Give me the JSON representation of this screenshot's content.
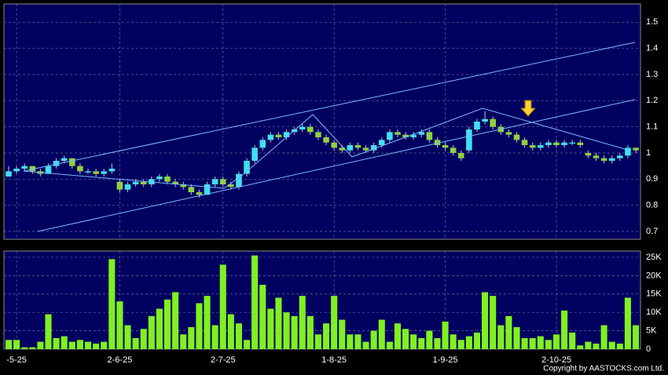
{
  "chart_data": {
    "type": "candlestick",
    "x": [
      null,
      "-5-25",
      null,
      null,
      null,
      null,
      null,
      null,
      null,
      null,
      null,
      null,
      null,
      null,
      "2-6-25",
      null,
      null,
      null,
      null,
      null,
      null,
      null,
      null,
      null,
      null,
      null,
      null,
      "2-7-25",
      null,
      null,
      null,
      null,
      null,
      null,
      null,
      null,
      null,
      null,
      null,
      null,
      null,
      "1-8-25",
      null,
      null,
      null,
      null,
      null,
      null,
      null,
      null,
      null,
      null,
      null,
      null,
      null,
      "1-9-25",
      null,
      null,
      null,
      null,
      null,
      null,
      null,
      null,
      null,
      null,
      null,
      null,
      null,
      "2-10-25",
      null,
      null,
      null,
      null,
      null,
      null,
      null,
      null,
      null,
      null
    ],
    "open": [
      0.91,
      0.93,
      0.94,
      0.95,
      0.93,
      0.92,
      0.95,
      0.97,
      0.98,
      0.95,
      0.93,
      0.93,
      0.92,
      0.93,
      0.89,
      0.86,
      0.88,
      0.89,
      0.88,
      0.9,
      0.91,
      0.89,
      0.88,
      0.87,
      0.85,
      0.84,
      0.88,
      0.9,
      0.88,
      0.87,
      0.92,
      0.97,
      1.02,
      1.05,
      1.07,
      1.06,
      1.08,
      1.09,
      1.1,
      1.08,
      1.06,
      1.04,
      1.02,
      1.01,
      1.03,
      1.02,
      1.01,
      1.03,
      1.05,
      1.08,
      1.07,
      1.06,
      1.07,
      1.08,
      1.05,
      1.03,
      1.02,
      1.0,
      1.01,
      1.09,
      1.12,
      1.13,
      1.1,
      1.08,
      1.07,
      1.05,
      1.03,
      1.02,
      1.03,
      1.04,
      1.03,
      1.04,
      1.04,
      1.0,
      0.99,
      0.98,
      0.97,
      0.98,
      0.99,
      1.02
    ],
    "high": [
      0.95,
      0.95,
      0.96,
      0.95,
      0.94,
      0.96,
      0.98,
      0.99,
      0.98,
      0.96,
      0.94,
      0.94,
      0.94,
      0.96,
      0.9,
      0.89,
      0.9,
      0.9,
      0.91,
      0.92,
      0.92,
      0.9,
      0.89,
      0.88,
      0.86,
      0.89,
      0.91,
      0.91,
      0.89,
      0.93,
      0.98,
      1.03,
      1.06,
      1.08,
      1.08,
      1.09,
      1.1,
      1.11,
      1.11,
      1.09,
      1.07,
      1.05,
      1.03,
      1.04,
      1.04,
      1.03,
      1.04,
      1.06,
      1.09,
      1.09,
      1.08,
      1.08,
      1.09,
      1.09,
      1.06,
      1.04,
      1.03,
      1.01,
      1.1,
      1.13,
      1.16,
      1.14,
      1.11,
      1.09,
      1.08,
      1.06,
      1.04,
      1.04,
      1.05,
      1.05,
      1.05,
      1.05,
      1.05,
      1.01,
      1.0,
      0.99,
      0.99,
      1.0,
      1.03,
      1.02
    ],
    "low": [
      0.91,
      0.92,
      0.93,
      0.92,
      0.91,
      0.92,
      0.94,
      0.96,
      0.94,
      0.92,
      0.92,
      0.91,
      0.91,
      0.92,
      0.85,
      0.85,
      0.87,
      0.87,
      0.87,
      0.89,
      0.88,
      0.87,
      0.86,
      0.84,
      0.83,
      0.84,
      0.87,
      0.87,
      0.86,
      0.86,
      0.91,
      0.96,
      1.01,
      1.04,
      1.05,
      1.05,
      1.07,
      1.08,
      1.07,
      1.05,
      1.03,
      1.01,
      1.0,
      1.0,
      1.01,
      1.0,
      1.0,
      1.02,
      1.04,
      1.06,
      1.05,
      1.05,
      1.06,
      1.04,
      1.02,
      1.01,
      0.99,
      0.97,
      1.0,
      1.08,
      1.11,
      1.09,
      1.07,
      1.06,
      1.04,
      1.02,
      1.01,
      1.01,
      1.02,
      1.02,
      1.02,
      1.03,
      1.02,
      0.98,
      0.97,
      0.96,
      0.96,
      0.97,
      0.98,
      1.0
    ],
    "close": [
      0.93,
      0.94,
      0.95,
      0.93,
      0.92,
      0.95,
      0.97,
      0.98,
      0.95,
      0.93,
      0.93,
      0.92,
      0.93,
      0.94,
      0.86,
      0.88,
      0.89,
      0.88,
      0.9,
      0.91,
      0.89,
      0.88,
      0.87,
      0.85,
      0.84,
      0.88,
      0.9,
      0.88,
      0.87,
      0.92,
      0.97,
      1.02,
      1.05,
      1.07,
      1.06,
      1.08,
      1.09,
      1.1,
      1.08,
      1.06,
      1.04,
      1.02,
      1.01,
      1.03,
      1.02,
      1.01,
      1.03,
      1.05,
      1.08,
      1.07,
      1.06,
      1.07,
      1.08,
      1.05,
      1.03,
      1.02,
      1.0,
      0.98,
      1.09,
      1.12,
      1.13,
      1.1,
      1.08,
      1.07,
      1.05,
      1.03,
      1.02,
      1.03,
      1.04,
      1.03,
      1.04,
      1.04,
      1.03,
      0.99,
      0.98,
      0.97,
      0.98,
      0.99,
      1.02,
      1.01
    ],
    "up_color": "#40e0f0",
    "down_color": "#90d040",
    "ylim": [
      0.67,
      1.57
    ],
    "yticks": [
      0.7,
      0.8,
      0.9,
      1,
      1.1,
      1.2,
      1.3,
      1.4,
      1.5
    ],
    "grid": true,
    "volume": {
      "type": "bar",
      "color": "#80f020",
      "values": [
        2500,
        2500,
        500,
        500,
        2000,
        9500,
        3000,
        3500,
        2000,
        2500,
        2000,
        1500,
        2000,
        24500,
        13000,
        6500,
        3000,
        5500,
        9000,
        11000,
        13500,
        15500,
        4000,
        6000,
        12500,
        14500,
        6500,
        23000,
        9500,
        7000,
        2500,
        25500,
        17500,
        11000,
        14000,
        10000,
        9000,
        14500,
        9000,
        4000,
        7000,
        14500,
        8000,
        4000,
        4000,
        2000,
        5000,
        8000,
        2000,
        7000,
        5500,
        4000,
        3000,
        5000,
        3000,
        7500,
        4000,
        2500,
        3500,
        4500,
        15500,
        14500,
        6500,
        9000,
        6000,
        3000,
        3000,
        3500,
        2500,
        4000,
        10500,
        4500,
        1000,
        2000,
        1500,
        6500,
        2000,
        1500,
        14000,
        6500
      ],
      "ylim": [
        0,
        26700
      ],
      "yticks": [
        0,
        {
          "value": 5000,
          "label": "5K"
        },
        {
          "value": 10000,
          "label": "10K"
        },
        {
          "value": 15000,
          "label": "15K"
        },
        {
          "value": 20000,
          "label": "20K"
        },
        {
          "value": 25000,
          "label": "25K"
        }
      ]
    }
  },
  "copyright": "Copyright by AASTOCKS.com Ltd."
}
